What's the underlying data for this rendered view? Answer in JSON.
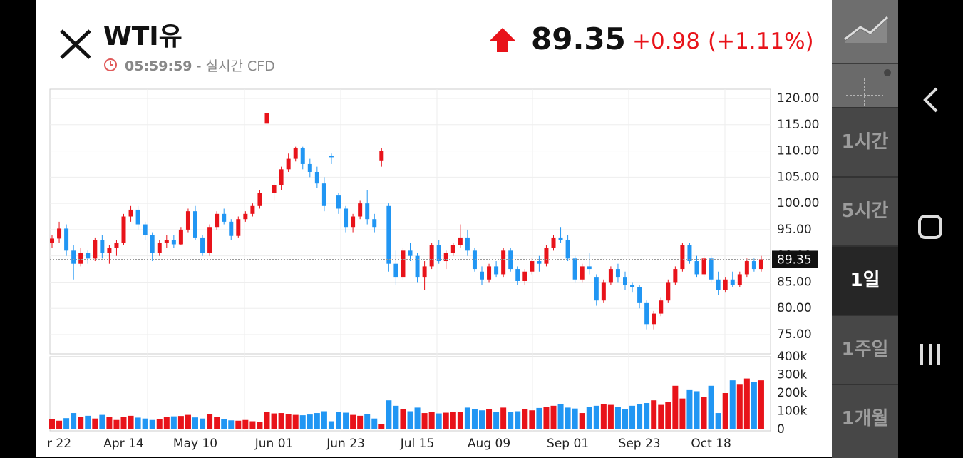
{
  "header": {
    "title": "WTI유",
    "time": "05:59:59",
    "source": "- 실시간 CFD",
    "price": "89.35",
    "change": "+0.98",
    "change_pct": "(+1.11%)"
  },
  "timeframes": [
    "1시간",
    "5시간",
    "1일",
    "1주일",
    "1개월"
  ],
  "chart_data": {
    "type": "candlestick",
    "categories": [
      null,
      "r 22",
      null,
      null,
      null,
      null,
      null,
      null,
      null,
      null,
      "Apr 14",
      null,
      null,
      null,
      null,
      null,
      null,
      null,
      null,
      null,
      "May 10",
      null,
      null,
      null,
      null,
      null,
      null,
      null,
      null,
      null,
      null,
      "Jun 01",
      null,
      null,
      null,
      null,
      null,
      null,
      null,
      null,
      null,
      "Jun 23",
      null,
      null,
      null,
      null,
      null,
      null,
      null,
      null,
      null,
      "Jul 15",
      null,
      null,
      null,
      null,
      null,
      null,
      null,
      null,
      null,
      "Aug 09",
      null,
      null,
      null,
      null,
      null,
      null,
      null,
      null,
      null,
      null,
      "Sep 01",
      null,
      null,
      null,
      null,
      null,
      null,
      null,
      null,
      null,
      "Sep 23",
      null,
      null,
      null,
      null,
      null,
      null,
      null,
      null,
      null,
      "Oct 18",
      null,
      null,
      null,
      null,
      null,
      null,
      null
    ],
    "candles": [
      [
        92.5,
        94,
        91.5,
        93.3
      ],
      [
        93.3,
        96.5,
        92.5,
        95.2
      ],
      [
        95.2,
        96,
        90,
        91
      ],
      [
        91,
        92,
        85.5,
        88.5
      ],
      [
        88.5,
        91.5,
        88,
        90.5
      ],
      [
        90.5,
        91,
        88.5,
        89.5
      ],
      [
        89.5,
        93.5,
        89,
        93
      ],
      [
        93,
        94,
        89.5,
        90.5
      ],
      [
        90.5,
        92,
        88.5,
        91.5
      ],
      [
        91.5,
        93,
        90,
        92.5
      ],
      [
        92.5,
        98,
        92,
        97.5
      ],
      [
        97.5,
        99.5,
        96.5,
        98.8
      ],
      [
        98.8,
        99.5,
        95,
        96
      ],
      [
        96,
        96.5,
        93,
        94
      ],
      [
        94,
        94.5,
        89,
        90.5
      ],
      [
        90.5,
        93,
        90,
        92.5
      ],
      [
        92.5,
        94,
        91.5,
        93
      ],
      [
        93,
        94,
        91.5,
        92.2
      ],
      [
        92.2,
        95.5,
        92,
        95
      ],
      [
        95,
        99,
        94.5,
        98.5
      ],
      [
        98.5,
        99.5,
        93,
        93.5
      ],
      [
        93.5,
        94,
        90,
        90.5
      ],
      [
        90.5,
        96,
        90,
        95.5
      ],
      [
        95.5,
        98.5,
        95,
        98
      ],
      [
        98,
        99,
        96,
        96.5
      ],
      [
        96.5,
        97,
        93,
        93.8
      ],
      [
        93.8,
        97.5,
        93.5,
        97
      ],
      [
        97,
        98.5,
        96.5,
        98
      ],
      [
        98,
        100,
        97.5,
        99.5
      ],
      [
        99.5,
        102.5,
        99,
        102
      ],
      [
        115.2,
        117.5,
        115,
        117.2
      ],
      [
        102,
        104,
        100.5,
        103.5
      ],
      [
        103.5,
        107,
        102.5,
        106.5
      ],
      [
        106.5,
        109.5,
        106,
        108.5
      ],
      [
        108.5,
        110.8,
        108,
        110.5
      ],
      [
        110.5,
        110.8,
        106.5,
        107.5
      ],
      [
        107.5,
        108.5,
        105,
        106
      ],
      [
        106,
        107,
        103,
        103.8
      ],
      [
        103.8,
        105,
        98.5,
        99.5
      ],
      [
        109,
        109.5,
        107.5,
        108.8
      ],
      [
        101.5,
        102,
        98,
        99
      ],
      [
        99,
        99.5,
        94.5,
        95.5
      ],
      [
        95.5,
        98,
        94.5,
        97.5
      ],
      [
        97.5,
        100.5,
        97,
        100
      ],
      [
        100,
        102.5,
        96,
        97
      ],
      [
        97,
        98,
        94.5,
        95.5
      ],
      [
        108.2,
        110.5,
        107,
        110
      ],
      [
        99.5,
        100,
        87,
        88.5
      ],
      [
        88.5,
        91,
        84.5,
        86
      ],
      [
        86,
        91.5,
        85.5,
        91
      ],
      [
        91,
        92.5,
        89,
        90
      ],
      [
        90,
        90.5,
        85,
        86
      ],
      [
        86,
        89,
        83.5,
        88
      ],
      [
        88,
        92.5,
        87.5,
        92
      ],
      [
        92,
        93,
        88.5,
        89
      ],
      [
        89,
        91,
        87.5,
        90.5
      ],
      [
        90.5,
        92.5,
        90,
        92
      ],
      [
        92,
        96,
        91.5,
        93.5
      ],
      [
        93.5,
        95,
        90,
        91
      ],
      [
        91,
        91.5,
        87,
        87.5
      ],
      [
        87,
        88,
        84.5,
        85.5
      ],
      [
        85.5,
        88.5,
        85,
        88
      ],
      [
        88,
        89,
        86,
        86.5
      ],
      [
        86.5,
        91.5,
        86,
        91
      ],
      [
        91,
        91.5,
        87,
        87.5
      ],
      [
        87.5,
        88,
        84.5,
        85.2
      ],
      [
        85.2,
        87.5,
        84.5,
        87
      ],
      [
        87,
        89.5,
        86.5,
        89
      ],
      [
        89,
        90,
        87,
        88.5
      ],
      [
        88.5,
        92,
        88,
        91.5
      ],
      [
        91.5,
        94,
        91,
        93.5
      ],
      [
        93.5,
        95.5,
        92.5,
        93
      ],
      [
        93,
        94,
        89,
        89.5
      ],
      [
        89.5,
        90,
        85,
        85.5
      ],
      [
        85.5,
        88.5,
        85,
        88
      ],
      [
        88,
        90.5,
        86.5,
        87.5
      ],
      [
        86,
        86.5,
        80.5,
        81.5
      ],
      [
        81.5,
        85.5,
        81,
        85
      ],
      [
        85,
        88,
        84.5,
        87.5
      ],
      [
        87.5,
        88.5,
        85,
        86
      ],
      [
        86,
        87,
        83.5,
        84.5
      ],
      [
        84.5,
        85,
        83,
        84
      ],
      [
        84,
        84.5,
        80,
        81
      ],
      [
        81,
        81.5,
        76,
        77
      ],
      [
        77,
        79.5,
        76,
        79
      ],
      [
        79,
        82,
        78.5,
        81.5
      ],
      [
        81.5,
        85.5,
        81,
        85
      ],
      [
        85,
        88,
        84.5,
        87.5
      ],
      [
        87.5,
        92.5,
        87,
        92
      ],
      [
        92,
        92.5,
        88.5,
        89
      ],
      [
        89,
        90,
        86,
        86.5
      ],
      [
        86.5,
        90,
        86,
        89.5
      ],
      [
        89.5,
        90,
        85,
        85.5
      ],
      [
        85.5,
        87,
        82.5,
        83.5
      ],
      [
        83.5,
        86,
        83,
        85.5
      ],
      [
        85.5,
        87,
        84,
        84.5
      ],
      [
        84.5,
        87,
        84,
        86.5
      ],
      [
        86.5,
        89.5,
        86,
        89
      ],
      [
        89,
        89.5,
        87,
        87.5
      ],
      [
        87.5,
        90,
        87,
        89.35
      ]
    ],
    "volume": [
      55000,
      48000,
      62000,
      90000,
      70000,
      75000,
      60000,
      80000,
      68000,
      52000,
      70000,
      75000,
      65000,
      60000,
      52000,
      58000,
      70000,
      72000,
      74000,
      80000,
      66000,
      60000,
      84000,
      70000,
      58000,
      50000,
      48000,
      52000,
      45000,
      40000,
      95000,
      88000,
      90000,
      85000,
      80000,
      78000,
      82000,
      90000,
      100000,
      45000,
      98000,
      92000,
      80000,
      75000,
      85000,
      60000,
      30000,
      160000,
      130000,
      110000,
      100000,
      120000,
      90000,
      95000,
      88000,
      92000,
      98000,
      96000,
      120000,
      110000,
      105000,
      112000,
      95000,
      120000,
      98000,
      100000,
      110000,
      105000,
      118000,
      125000,
      130000,
      140000,
      120000,
      115000,
      90000,
      125000,
      130000,
      140000,
      135000,
      125000,
      110000,
      130000,
      140000,
      145000,
      160000,
      135000,
      150000,
      240000,
      170000,
      220000,
      210000,
      180000,
      240000,
      90000,
      200000,
      270000,
      250000,
      280000,
      260000,
      270000
    ],
    "up_color": "#e8131a",
    "down_color": "#2196f3",
    "ylim": [
      71.33,
      121.77
    ],
    "yticks": [
      {
        "value": 75,
        "label": "75.00"
      },
      {
        "value": 80,
        "label": "80.00"
      },
      {
        "value": 85,
        "label": "85.00"
      },
      {
        "value": 90,
        "label": "90.00"
      },
      {
        "value": 95,
        "label": "95.00"
      },
      {
        "value": 100,
        "label": "100.00"
      },
      {
        "value": 105,
        "label": "105.00"
      },
      {
        "value": 110,
        "label": "110.00"
      },
      {
        "value": 115,
        "label": "115.00"
      },
      {
        "value": 120,
        "label": "120.00"
      }
    ],
    "volume_ylim": [
      0,
      400000
    ],
    "volume_yticks": [
      0,
      {
        "value": 100000,
        "label": "100k"
      },
      {
        "value": 200000,
        "label": "200k"
      },
      {
        "value": 300000,
        "label": "300k"
      },
      {
        "value": 400000,
        "label": "400k"
      }
    ],
    "grid": true
  }
}
